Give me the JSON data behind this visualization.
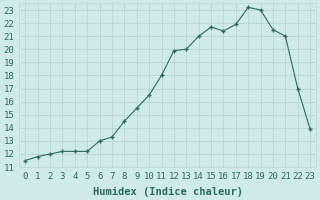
{
  "x": [
    0,
    1,
    2,
    3,
    4,
    5,
    6,
    7,
    8,
    9,
    10,
    11,
    12,
    13,
    14,
    15,
    16,
    17,
    18,
    19,
    20,
    21,
    22,
    23
  ],
  "y": [
    11.5,
    11.8,
    12.0,
    12.2,
    12.2,
    12.2,
    13.0,
    13.3,
    14.5,
    15.5,
    16.5,
    18.0,
    19.9,
    20.0,
    21.0,
    21.7,
    21.4,
    21.9,
    23.2,
    23.0,
    21.5,
    21.0,
    17.0,
    13.9
  ],
  "line_color": "#2d6b5e",
  "marker": "P",
  "marker_size": 2.5,
  "bg_color": "#ceeaea",
  "grid_color_major": "#b8d4d4",
  "grid_color_minor": "#c8e0e0",
  "xlabel": "Humidex (Indice chaleur)",
  "xlim": [
    -0.5,
    23.5
  ],
  "ylim": [
    11,
    23.5
  ],
  "yticks": [
    11,
    12,
    13,
    14,
    15,
    16,
    17,
    18,
    19,
    20,
    21,
    22,
    23
  ],
  "xticks": [
    0,
    1,
    2,
    3,
    4,
    5,
    6,
    7,
    8,
    9,
    10,
    11,
    12,
    13,
    14,
    15,
    16,
    17,
    18,
    19,
    20,
    21,
    22,
    23
  ],
  "tick_fontsize": 6.5,
  "xlabel_fontsize": 7.5
}
